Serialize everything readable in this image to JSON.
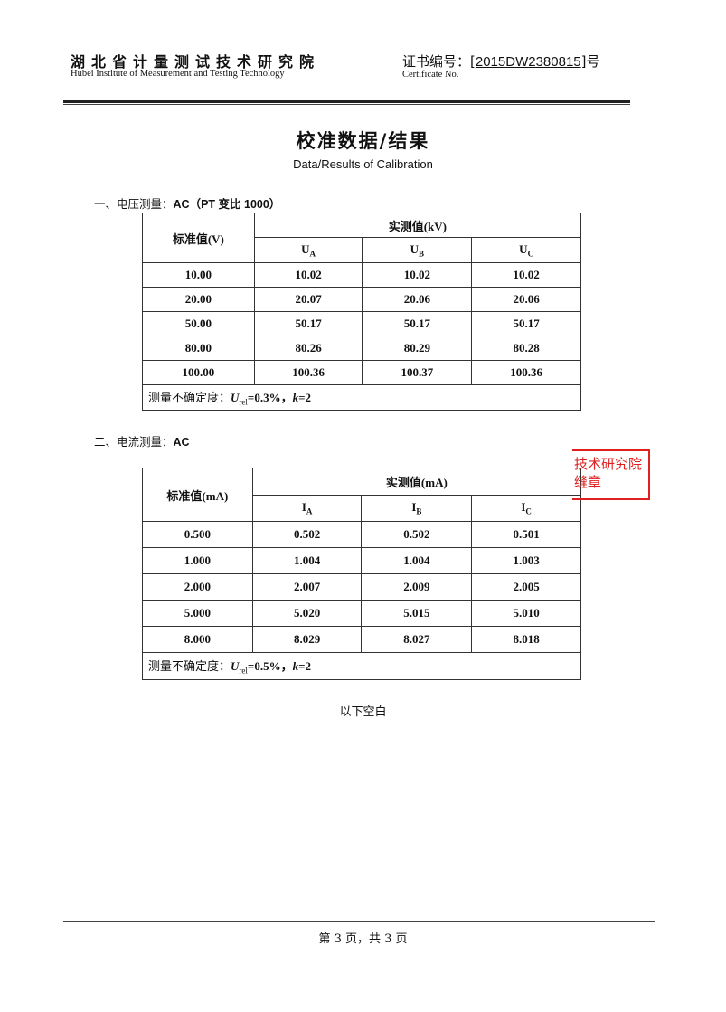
{
  "header": {
    "org_cn": "湖北省计量测试技术研究院",
    "org_en": "Hubei Institute of Measurement and Testing Technology",
    "cert_label": "证书编号：",
    "cert_bracket_open": "[",
    "cert_number": "2015DW2380815",
    "cert_bracket_close": "]",
    "cert_suffix": "号",
    "cert_en": "Certificate No."
  },
  "title": "校准数据/结果",
  "subtitle": "Data/Results of Calibration",
  "section1": {
    "heading_prefix": "一、电压测量：",
    "heading_rest": "AC（PT 变比 1000）",
    "std_header": "标准值(V)",
    "meas_header": "实测值(kV)",
    "cols": [
      {
        "sym": "U",
        "sub": "A"
      },
      {
        "sym": "U",
        "sub": "B"
      },
      {
        "sym": "U",
        "sub": "C"
      }
    ],
    "rows": [
      [
        "10.00",
        "10.02",
        "10.02",
        "10.02"
      ],
      [
        "20.00",
        "20.07",
        "20.06",
        "20.06"
      ],
      [
        "50.00",
        "50.17",
        "50.17",
        "50.17"
      ],
      [
        "80.00",
        "80.26",
        "80.29",
        "80.28"
      ],
      [
        "100.00",
        "100.36",
        "100.37",
        "100.36"
      ]
    ],
    "uncertainty": {
      "label": "测量不确定度：",
      "sym": "U",
      "sub": "rel",
      "value": "=0.3%，",
      "k": "k",
      "k_value": "=2"
    }
  },
  "section2": {
    "heading_prefix": "二、电流测量：",
    "heading_rest": "AC",
    "std_header": "标准值(mA)",
    "meas_header": "实测值(mA)",
    "cols": [
      {
        "sym": "I",
        "sub": "A"
      },
      {
        "sym": "I",
        "sub": "B"
      },
      {
        "sym": "I",
        "sub": "C"
      }
    ],
    "rows": [
      [
        "0.500",
        "0.502",
        "0.502",
        "0.501"
      ],
      [
        "1.000",
        "1.004",
        "1.004",
        "1.003"
      ],
      [
        "2.000",
        "2.007",
        "2.009",
        "2.005"
      ],
      [
        "5.000",
        "5.020",
        "5.015",
        "5.010"
      ],
      [
        "8.000",
        "8.029",
        "8.027",
        "8.018"
      ]
    ],
    "uncertainty": {
      "label": "测量不确定度：",
      "sym": "U",
      "sub": "rel",
      "value": "=0.5%，",
      "k": "k",
      "k_value": "=2"
    }
  },
  "stamp": {
    "line1": "技术研究院",
    "line2": "缝章",
    "color": "#e02020"
  },
  "blank_note": "以下空白",
  "footer": {
    "page": "第 3 页，共 3 页"
  }
}
